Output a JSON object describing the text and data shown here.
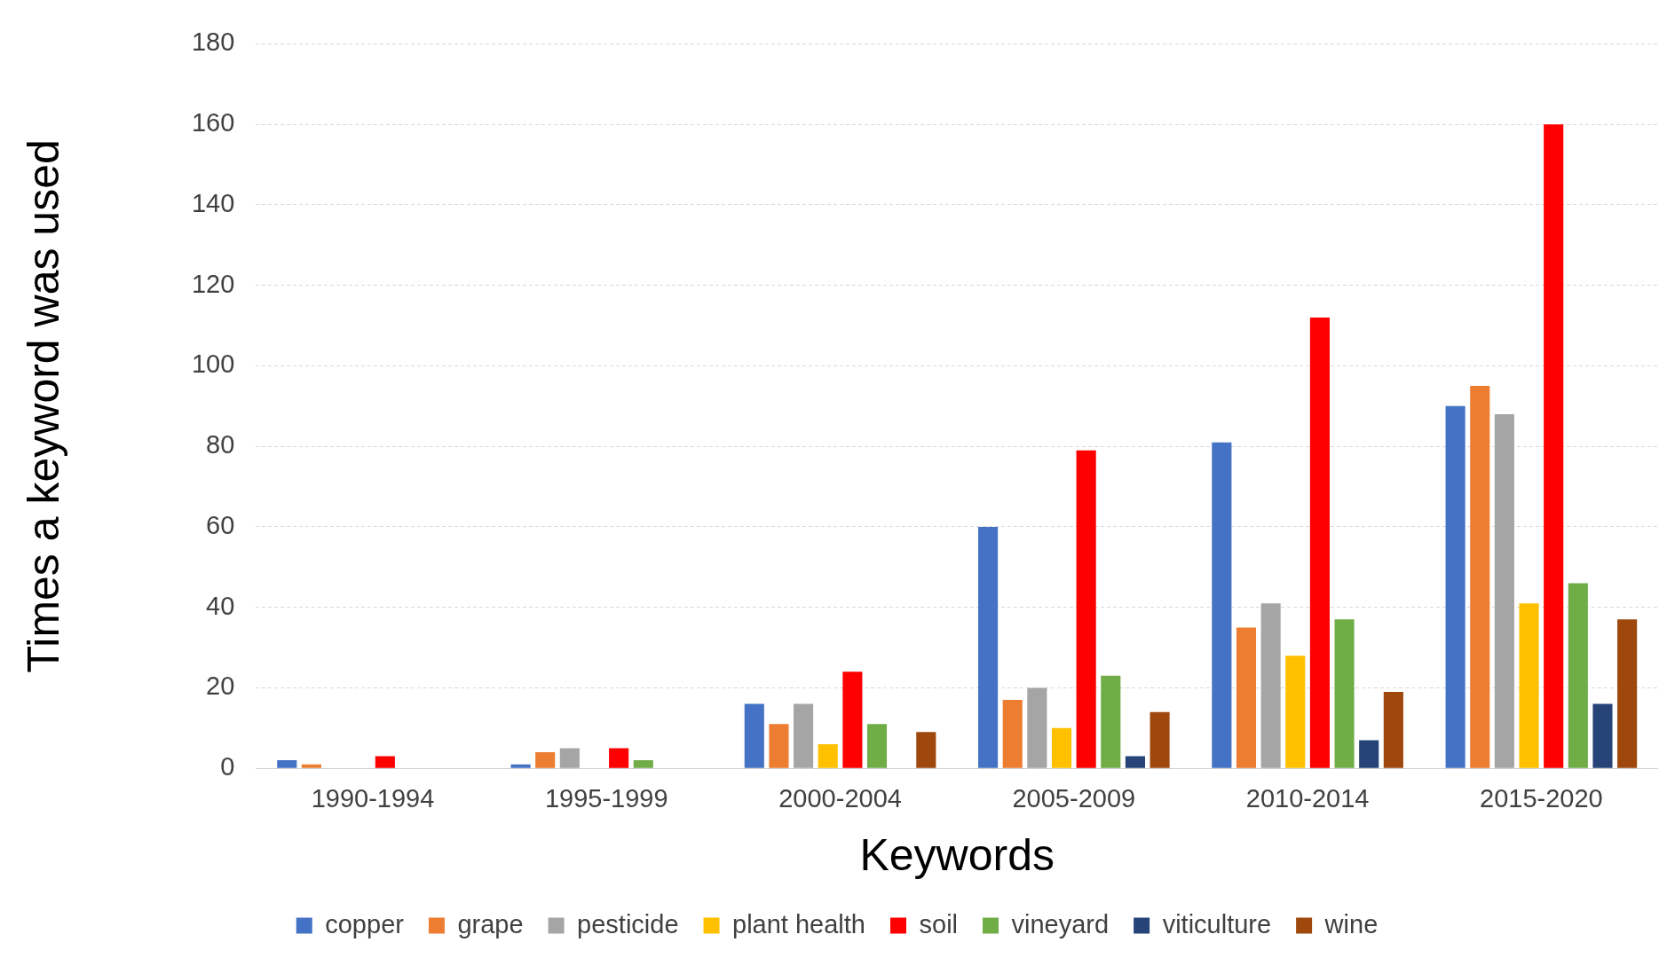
{
  "chart_data": {
    "type": "bar",
    "xlabel": "Keywords",
    "ylabel": "Times a keyword was used",
    "categories": [
      "1990-1994",
      "1995-1999",
      "2000-2004",
      "2005-2009",
      "2010-2014",
      "2015-2020"
    ],
    "series": [
      {
        "name": "copper",
        "color": "#4472c4",
        "values": [
          2,
          1,
          16,
          60,
          81,
          90
        ]
      },
      {
        "name": "grape",
        "color": "#ed7d31",
        "values": [
          1,
          4,
          11,
          17,
          35,
          95
        ]
      },
      {
        "name": "pesticide",
        "color": "#a5a5a5",
        "values": [
          0,
          5,
          16,
          20,
          41,
          88
        ]
      },
      {
        "name": "plant health",
        "color": "#ffc000",
        "values": [
          0,
          0,
          6,
          10,
          28,
          41
        ]
      },
      {
        "name": "soil",
        "color": "#ff0000",
        "values": [
          3,
          5,
          24,
          79,
          112,
          160
        ]
      },
      {
        "name": "vineyard",
        "color": "#70ad47",
        "values": [
          0,
          2,
          11,
          23,
          37,
          46
        ]
      },
      {
        "name": "viticulture",
        "color": "#264478",
        "values": [
          0,
          0,
          0,
          3,
          7,
          16
        ]
      },
      {
        "name": "wine",
        "color": "#9e480e",
        "values": [
          0,
          0,
          9,
          14,
          19,
          37
        ]
      }
    ],
    "ylim": [
      0,
      180
    ],
    "yticks": [
      0,
      20,
      40,
      60,
      80,
      100,
      120,
      140,
      160,
      180
    ],
    "grid": "y",
    "legend": "bottom"
  }
}
